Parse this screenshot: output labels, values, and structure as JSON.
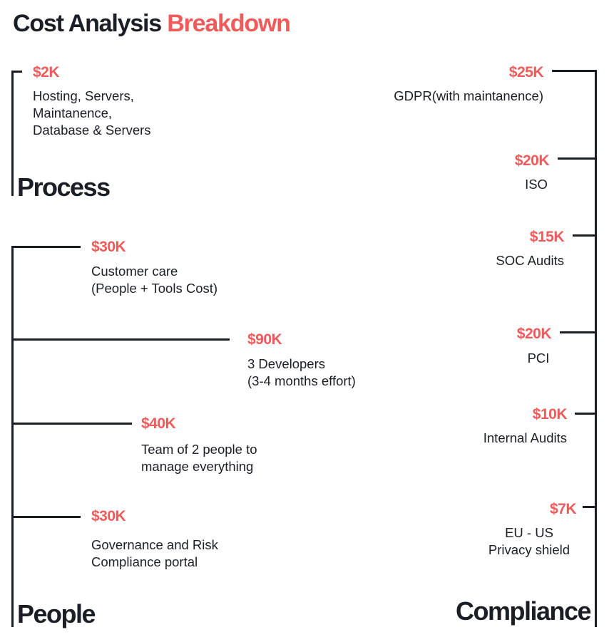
{
  "title": {
    "main": "Cost Analysis",
    "accent": "Breakdown"
  },
  "colors": {
    "accent": "#f05a5a",
    "ink": "#1b1e24"
  },
  "process": {
    "heading": "Process",
    "items": [
      {
        "amount": "$2K",
        "lines": [
          "Hosting, Servers,",
          "Maintanence,",
          "Database & Servers"
        ]
      }
    ]
  },
  "people": {
    "heading": "People",
    "items": [
      {
        "amount": "$30K",
        "lines": [
          "Customer care",
          "(People + Tools Cost)"
        ]
      },
      {
        "amount": "$90K",
        "lines": [
          "3 Developers",
          "(3-4 months effort)"
        ]
      },
      {
        "amount": "$40K",
        "lines": [
          "Team of 2 people to",
          "manage everything"
        ]
      },
      {
        "amount": "$30K",
        "lines": [
          "Governance and Risk",
          "Compliance portal"
        ]
      }
    ]
  },
  "compliance": {
    "heading": "Compliance",
    "items": [
      {
        "amount": "$25K",
        "lines": [
          "GDPR(with maintanence)"
        ]
      },
      {
        "amount": "$20K",
        "lines": [
          "ISO"
        ]
      },
      {
        "amount": "$15K",
        "lines": [
          "SOC Audits"
        ]
      },
      {
        "amount": "$20K",
        "lines": [
          "PCI"
        ]
      },
      {
        "amount": "$10K",
        "lines": [
          "Internal Audits"
        ]
      },
      {
        "amount": "$7K",
        "lines": [
          "EU - US",
          "Privacy shield"
        ]
      }
    ]
  }
}
